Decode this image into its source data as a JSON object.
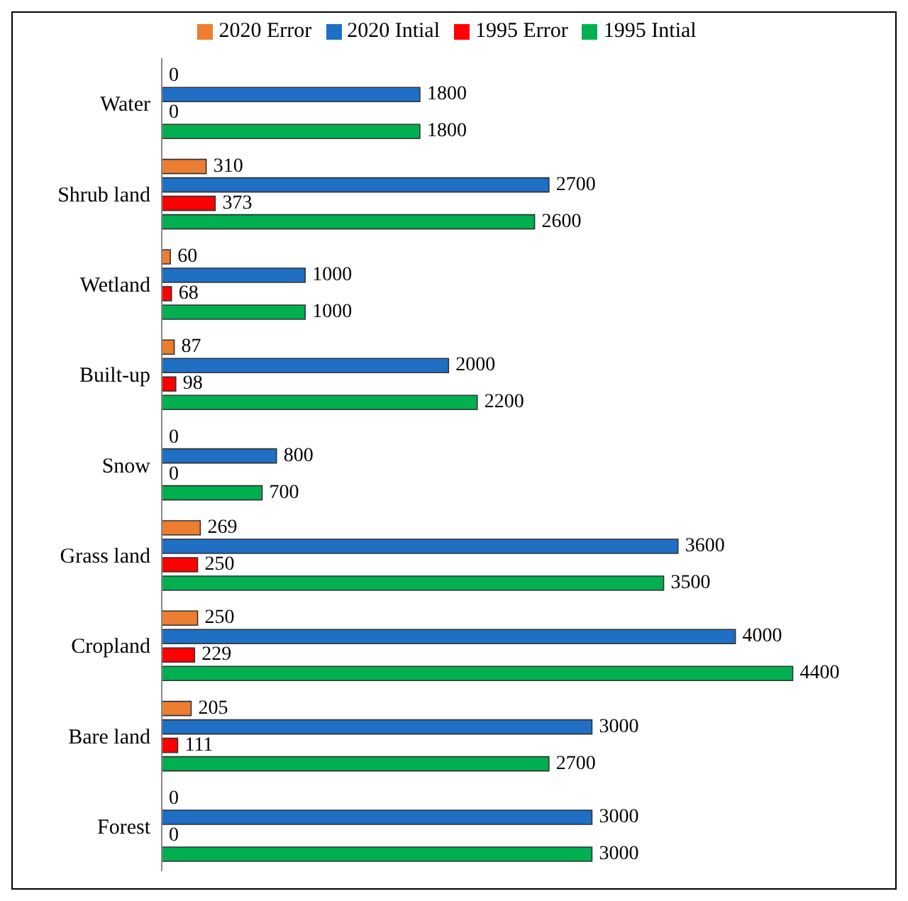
{
  "chart_data": {
    "type": "bar",
    "orientation": "horizontal",
    "data_labels": true,
    "legend": "top",
    "grid": false,
    "categories": [
      "Water",
      "Shrub land",
      "Wetland",
      "Built-up",
      "Snow",
      "Grass land",
      "Cropland",
      "Bare land",
      "Forest"
    ],
    "series": [
      {
        "name": "2020 Error",
        "color": "#ed7d31",
        "values": [
          0,
          310,
          60,
          87,
          0,
          269,
          250,
          205,
          0
        ]
      },
      {
        "name": "2020 Intial",
        "color": "#1f6fc5",
        "values": [
          1800,
          2700,
          1000,
          2000,
          800,
          3600,
          4000,
          3000,
          3000
        ]
      },
      {
        "name": "1995 Error",
        "color": "#ff0000",
        "values": [
          0,
          373,
          68,
          98,
          0,
          250,
          229,
          111,
          0
        ]
      },
      {
        "name": "1995 Intial",
        "color": "#00b050",
        "values": [
          1800,
          2600,
          1000,
          2200,
          700,
          3500,
          4400,
          2700,
          3000
        ]
      }
    ]
  }
}
